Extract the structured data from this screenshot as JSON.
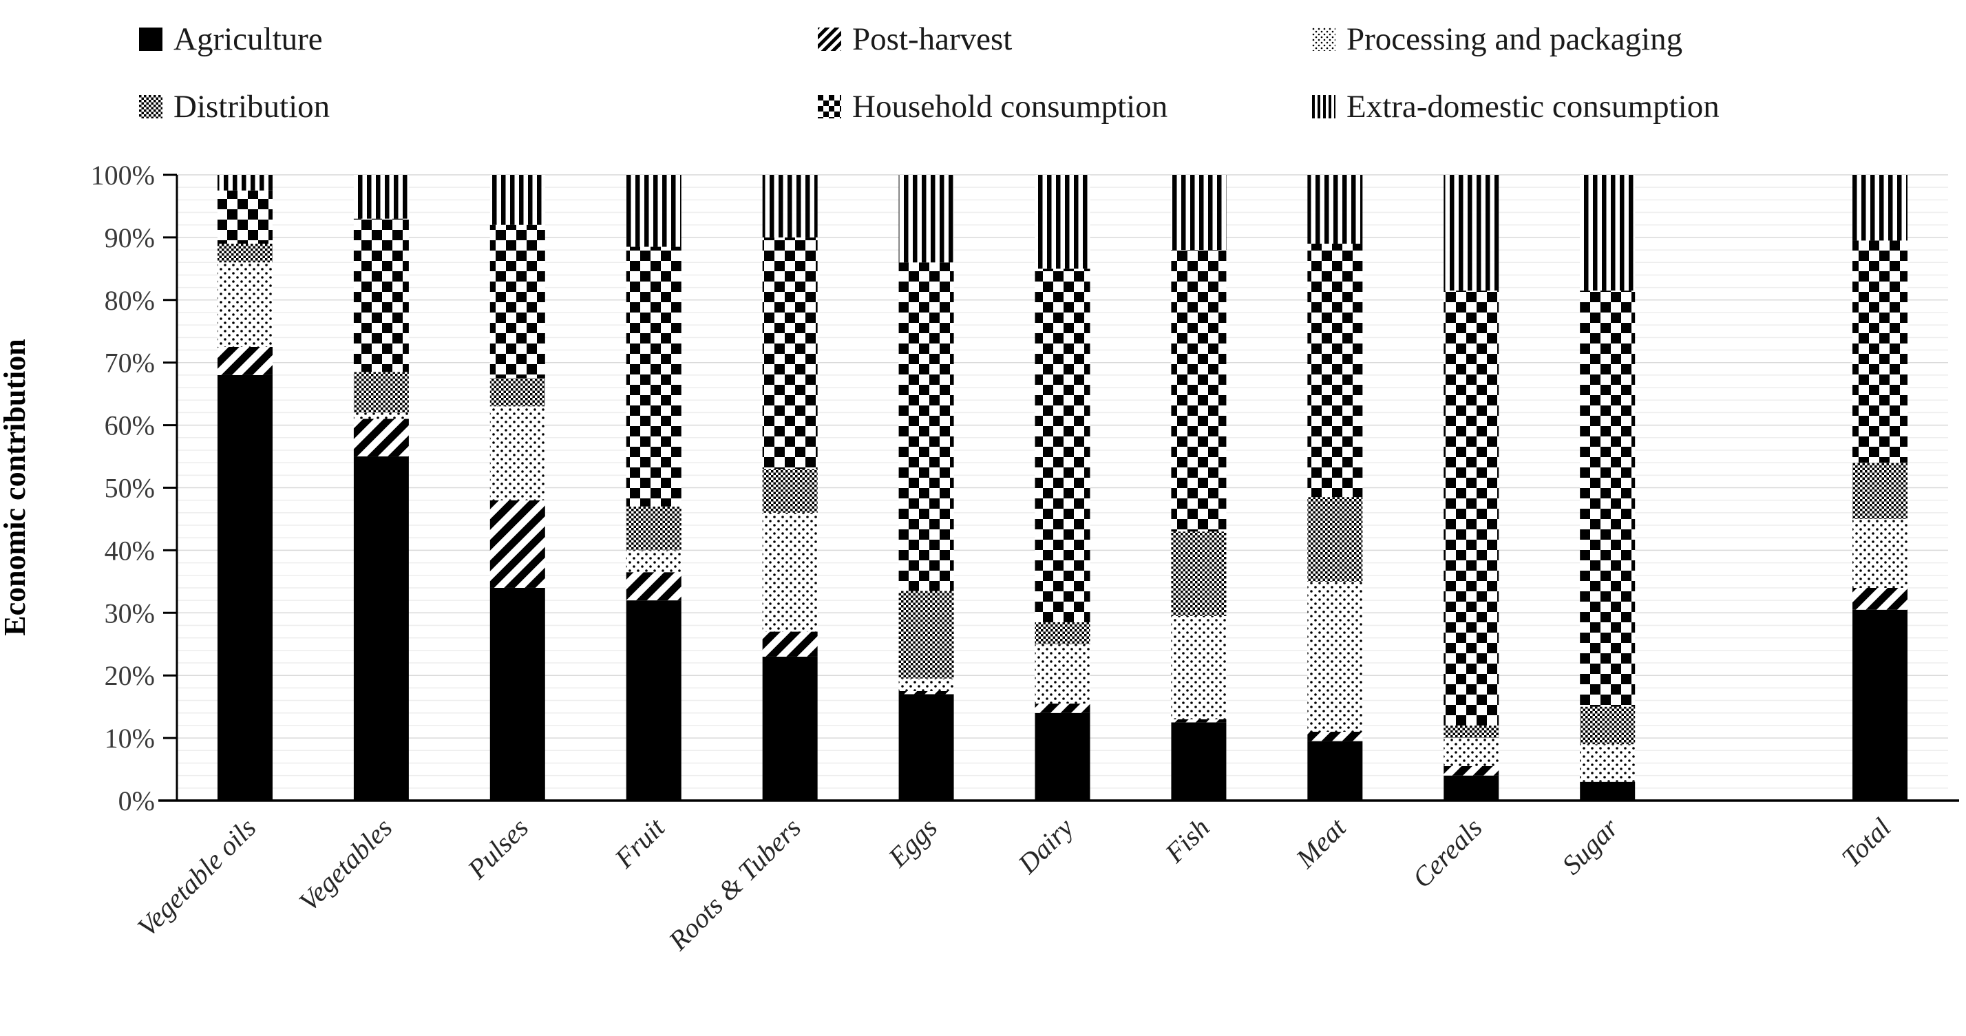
{
  "legend": {
    "items": [
      {
        "label": "Agriculture",
        "pattern": "agriculture"
      },
      {
        "label": "Post-harvest",
        "pattern": "post-harvest"
      },
      {
        "label": "Processing and packaging",
        "pattern": "processing"
      },
      {
        "label": "Distribution",
        "pattern": "distribution"
      },
      {
        "label": "Household consumption",
        "pattern": "household"
      },
      {
        "label": "Extra-domestic consumption",
        "pattern": "extra-domestic"
      }
    ]
  },
  "colors": {
    "foreground": "#000000",
    "background": "#ffffff",
    "grid_minor": "#ededed",
    "grid_major": "#d9d9d9"
  },
  "chart_data": {
    "type": "bar",
    "stacked": true,
    "percent_stack": true,
    "title": "",
    "xlabel": "",
    "ylabel": "Economic contribution",
    "ylim": [
      0,
      100
    ],
    "grid": "minor horizontal lines every 2%, major every 10%",
    "legend_position": "top",
    "yticks": [
      "0%",
      "10%",
      "20%",
      "30%",
      "40%",
      "50%",
      "60%",
      "70%",
      "80%",
      "90%",
      "100%"
    ],
    "categories": [
      "Vegetable oils",
      "Vegetables",
      "Pulses",
      "Fruit",
      "Roots & Tubers",
      "Eggs",
      "Dairy",
      "Fish",
      "Meat",
      "Cereals",
      "Sugar",
      "",
      "Total"
    ],
    "series": [
      {
        "name": "Agriculture",
        "pattern": "agriculture",
        "values": [
          68,
          55,
          34,
          32,
          23,
          17,
          14,
          12.5,
          9.5,
          4,
          3,
          0,
          30.5
        ]
      },
      {
        "name": "Post-harvest",
        "pattern": "post-harvest",
        "values": [
          4.5,
          6,
          14,
          4.5,
          4,
          0.5,
          1.5,
          0.5,
          1.5,
          1.5,
          0,
          0,
          3.5
        ]
      },
      {
        "name": "Processing and packaging",
        "pattern": "processing",
        "values": [
          13.5,
          1,
          15,
          3.5,
          19,
          2,
          9.5,
          16.5,
          24,
          4.5,
          6,
          0,
          11
        ]
      },
      {
        "name": "Distribution",
        "pattern": "distribution",
        "values": [
          3,
          6.5,
          4.5,
          7,
          7,
          14,
          3.5,
          13.5,
          13.5,
          2,
          6,
          0,
          9
        ]
      },
      {
        "name": "Household consumption",
        "pattern": "household",
        "values": [
          8.5,
          24.5,
          24.5,
          41.5,
          37,
          52.5,
          56.5,
          45,
          40.5,
          69.5,
          66.5,
          0,
          35.5
        ]
      },
      {
        "name": "Extra-domestic consumption",
        "pattern": "extra-domestic",
        "values": [
          2.5,
          7,
          8,
          11.5,
          10,
          14,
          15,
          12,
          11,
          18.5,
          18.5,
          0,
          10.5
        ]
      }
    ]
  }
}
